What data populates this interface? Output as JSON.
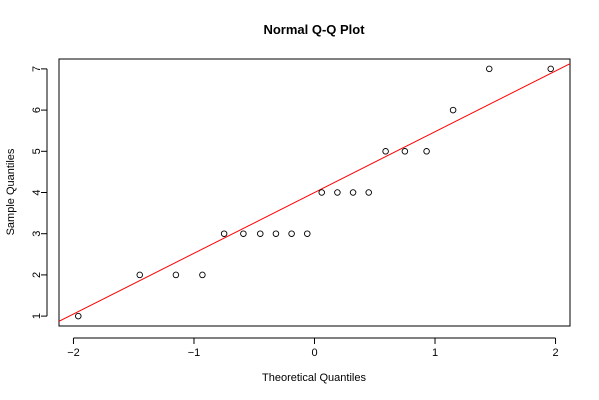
{
  "chart_data": {
    "type": "scatter",
    "title": "Normal Q-Q Plot",
    "xlabel": "Theoretical Quantiles",
    "ylabel": "Sample Quantiles",
    "xlim": [
      -2.12,
      2.12
    ],
    "ylim": [
      0.76,
      7.24
    ],
    "x_ticks": [
      -2,
      -1,
      0,
      1,
      2
    ],
    "x_tick_labels": [
      "−2",
      "−1",
      "0",
      "1",
      "2"
    ],
    "y_ticks": [
      1,
      2,
      3,
      4,
      5,
      6,
      7
    ],
    "y_tick_labels": [
      "1",
      "2",
      "3",
      "4",
      "5",
      "6",
      "7"
    ],
    "grid": false,
    "reference_line": {
      "color": "#ff0000",
      "intercept": 4.0,
      "slope": 1.475
    },
    "point_color": "#000000",
    "points": [
      {
        "x": -1.96,
        "y": 1
      },
      {
        "x": -1.45,
        "y": 2
      },
      {
        "x": -1.15,
        "y": 2
      },
      {
        "x": -0.93,
        "y": 2
      },
      {
        "x": -0.75,
        "y": 3
      },
      {
        "x": -0.59,
        "y": 3
      },
      {
        "x": -0.45,
        "y": 3
      },
      {
        "x": -0.32,
        "y": 3
      },
      {
        "x": -0.19,
        "y": 3
      },
      {
        "x": -0.06,
        "y": 3
      },
      {
        "x": 0.06,
        "y": 4
      },
      {
        "x": 0.19,
        "y": 4
      },
      {
        "x": 0.32,
        "y": 4
      },
      {
        "x": 0.45,
        "y": 4
      },
      {
        "x": 0.59,
        "y": 5
      },
      {
        "x": 0.75,
        "y": 5
      },
      {
        "x": 0.93,
        "y": 5
      },
      {
        "x": 1.15,
        "y": 6
      },
      {
        "x": 1.45,
        "y": 7
      },
      {
        "x": 1.96,
        "y": 7
      }
    ]
  }
}
